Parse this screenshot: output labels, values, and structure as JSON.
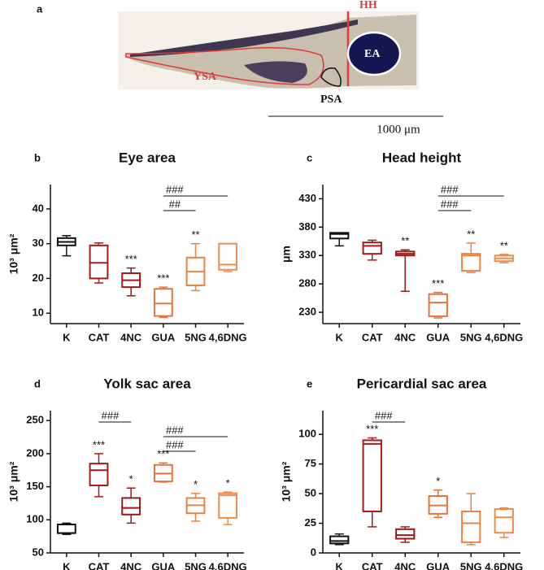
{
  "panel_a": {
    "label": "a",
    "annotations": [
      "HH",
      "EA",
      "YSA",
      "PSA"
    ],
    "scale_bar": "1000 μm"
  },
  "chart_data": [
    {
      "type": "box",
      "panel": "b",
      "title": "Eye area",
      "y_label": "10³ μm²",
      "categories": [
        "K",
        "CAT",
        "4NC",
        "GUA",
        "5NG",
        "4,6DNG"
      ],
      "colors": [
        "#111111",
        "#a31b1b",
        "#9a1a1a",
        "#e8733a",
        "#ee8142",
        "#f08b4c"
      ],
      "boxes": [
        {
          "min": 26.5,
          "q1": 29.5,
          "median": 30.5,
          "q3": 31.6,
          "max": 32.3
        },
        {
          "min": 18.7,
          "q1": 20,
          "median": 24.5,
          "q3": 29.5,
          "max": 30.2
        },
        {
          "min": 15,
          "q1": 17.5,
          "median": 19.5,
          "q3": 21.5,
          "max": 23
        },
        {
          "min": 8.8,
          "q1": 9.2,
          "median": 12.8,
          "q3": 17,
          "max": 17.5
        },
        {
          "min": 16.5,
          "q1": 18,
          "median": 22,
          "q3": 26,
          "max": 30
        },
        {
          "min": 22,
          "q1": 22.5,
          "median": 24,
          "q3": 30,
          "max": 30
        }
      ],
      "significance": [
        null,
        null,
        "***",
        "***",
        "**",
        null
      ],
      "brackets": [
        {
          "from": 3,
          "to": 5,
          "label": "###"
        },
        {
          "from": 3,
          "to": 4,
          "label": "##"
        }
      ],
      "ylim": [
        7,
        47
      ],
      "yticks": [
        10,
        20,
        30,
        40
      ]
    },
    {
      "type": "box",
      "panel": "c",
      "title": "Head height",
      "y_label": "μm",
      "categories": [
        "K",
        "CAT",
        "4NC",
        "GUA",
        "5NG",
        "4,6DNG"
      ],
      "colors": [
        "#111111",
        "#a31b1b",
        "#9a1a1a",
        "#e8733a",
        "#ee8142",
        "#f08b4c"
      ],
      "boxes": [
        {
          "min": 347,
          "q1": 360,
          "median": 368,
          "q3": 370,
          "max": 370
        },
        {
          "min": 322,
          "q1": 333,
          "median": 347,
          "q3": 353,
          "max": 357
        },
        {
          "min": 267,
          "q1": 330,
          "median": 333,
          "q3": 337,
          "max": 340
        },
        {
          "min": 220,
          "q1": 223,
          "median": 247,
          "q3": 262,
          "max": 265
        },
        {
          "min": 300,
          "q1": 303,
          "median": 330,
          "q3": 333,
          "max": 352
        },
        {
          "min": 317,
          "q1": 320,
          "median": 325,
          "q3": 330,
          "max": 332
        }
      ],
      "significance": [
        null,
        null,
        "**",
        "***",
        "**",
        "**"
      ],
      "brackets": [
        {
          "from": 3,
          "to": 5,
          "label": "###"
        },
        {
          "from": 3,
          "to": 4,
          "label": "###"
        }
      ],
      "ylim": [
        210,
        455
      ],
      "yticks": [
        230,
        280,
        330,
        380,
        430
      ]
    },
    {
      "type": "box",
      "panel": "d",
      "title": "Yolk sac area",
      "y_label": "10³ μm²",
      "categories": [
        "K",
        "CAT",
        "4NC",
        "GUA",
        "5NG",
        "4,6DNG"
      ],
      "colors": [
        "#111111",
        "#a31b1b",
        "#9a1a1a",
        "#e8733a",
        "#ee8142",
        "#f08b4c"
      ],
      "boxes": [
        {
          "min": 78,
          "q1": 80,
          "median": 80,
          "q3": 93,
          "max": 95
        },
        {
          "min": 135,
          "q1": 152,
          "median": 175,
          "q3": 185,
          "max": 200
        },
        {
          "min": 95,
          "q1": 108,
          "median": 118,
          "q3": 133,
          "max": 148
        },
        {
          "min": 157,
          "q1": 158,
          "median": 170,
          "q3": 183,
          "max": 186
        },
        {
          "min": 98,
          "q1": 110,
          "median": 122,
          "q3": 133,
          "max": 140
        },
        {
          "min": 93,
          "q1": 103,
          "median": 137,
          "q3": 140,
          "max": 142
        }
      ],
      "significance": [
        null,
        "***",
        "*",
        "***",
        "*",
        "*"
      ],
      "brackets": [
        {
          "from": 1,
          "to": 2,
          "label": "###"
        },
        {
          "from": 3,
          "to": 5,
          "label": "###"
        },
        {
          "from": 3,
          "to": 4,
          "label": "###"
        }
      ],
      "ylim": [
        50,
        265
      ],
      "yticks": [
        50,
        100,
        150,
        200,
        250
      ]
    },
    {
      "type": "box",
      "panel": "e",
      "title": "Pericardial sac area",
      "y_label": "10³ μm²",
      "categories": [
        "K",
        "CAT",
        "4NC",
        "GUA",
        "5NG",
        "4,6DNG"
      ],
      "colors": [
        "#111111",
        "#a31b1b",
        "#9a1a1a",
        "#e8733a",
        "#ee8142",
        "#f08b4c"
      ],
      "boxes": [
        {
          "min": 7,
          "q1": 8,
          "median": 10,
          "q3": 14,
          "max": 16
        },
        {
          "min": 22,
          "q1": 35,
          "median": 92,
          "q3": 95,
          "max": 97
        },
        {
          "min": 9,
          "q1": 12,
          "median": 15,
          "q3": 20,
          "max": 22
        },
        {
          "min": 30,
          "q1": 33,
          "median": 40,
          "q3": 48,
          "max": 53
        },
        {
          "min": 7,
          "q1": 9,
          "median": 25,
          "q3": 35,
          "max": 50
        },
        {
          "min": 13,
          "q1": 17,
          "median": 30,
          "q3": 37,
          "max": 38
        }
      ],
      "significance": [
        null,
        "***",
        null,
        "*",
        null,
        null
      ],
      "brackets": [
        {
          "from": 1,
          "to": 2,
          "label": "###"
        }
      ],
      "ylim": [
        0,
        120
      ],
      "yticks": [
        0,
        25,
        50,
        75,
        100
      ]
    }
  ]
}
